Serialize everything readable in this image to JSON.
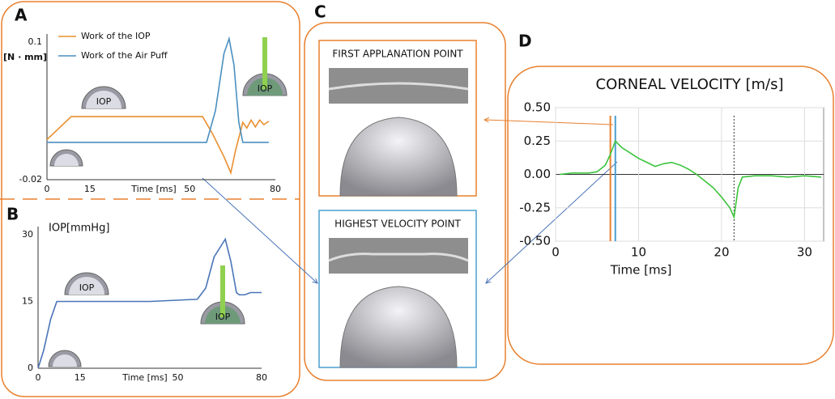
{
  "chart_data": [
    {
      "type": "line",
      "label": "A",
      "ylabel": "[N · mm]",
      "xlabel": "Time [ms]",
      "icon_label": "IOP",
      "xlim": [
        0,
        80
      ],
      "ylim": [
        -0.02,
        0.1
      ],
      "xticks": [
        0,
        15,
        50,
        80
      ],
      "yticks": [
        -0.02,
        0.1
      ],
      "series": [
        {
          "name": "Work of the IOP",
          "color": "#e8902e",
          "x": [
            0,
            8.5,
            54.5,
            58,
            62,
            64.4,
            66,
            68.6,
            70,
            71.5,
            73,
            74.5,
            76,
            77.7
          ],
          "values": [
            0.015,
            0.035,
            0.035,
            0.02,
            0.0,
            -0.014,
            0.005,
            0.03,
            0.025,
            0.032,
            0.026,
            0.032,
            0.028,
            0.031
          ]
        },
        {
          "name": "Work of the Air Puff",
          "color": "#4a8fc0",
          "x": [
            0,
            55.9,
            59,
            62,
            63.8,
            65.5,
            67.2,
            68.6,
            77.7
          ],
          "values": [
            0.0125,
            0.0125,
            0.04,
            0.09,
            0.103,
            0.08,
            0.03,
            0.0125,
            0.0125
          ]
        }
      ]
    },
    {
      "type": "line",
      "label": "B",
      "ylabel": "IOP[mmHg]",
      "xlabel": "Time [ms]",
      "icon_label": "IOP",
      "xlim": [
        0,
        80
      ],
      "ylim": [
        0,
        30
      ],
      "xticks": [
        0,
        15,
        50,
        80
      ],
      "yticks": [
        0,
        15,
        30
      ],
      "series": [
        {
          "name": null,
          "color": "#4a74b8",
          "x": [
            0,
            2,
            4.5,
            6.7,
            10,
            20,
            40,
            57,
            60,
            63,
            66,
            67,
            69,
            71,
            72,
            74,
            76,
            80
          ],
          "values": [
            0,
            4,
            11,
            15,
            15,
            15,
            15,
            15.5,
            18,
            25,
            28,
            29,
            24,
            17,
            16.5,
            16.5,
            17,
            17
          ]
        }
      ]
    },
    {
      "type": "line",
      "label": "D",
      "title": "CORNEAL VELOCITY [m/s]",
      "xlabel": "Time [ms]",
      "xlim": [
        0,
        32.3
      ],
      "ylim": [
        -0.5,
        0.5
      ],
      "xticks": [
        0,
        10,
        20,
        30
      ],
      "yticks": [
        {
          "value": -0.5,
          "label": "-0.50"
        },
        {
          "value": -0.25,
          "label": "-0.25"
        },
        {
          "value": 0,
          "label": "0.00"
        },
        {
          "value": 0.25,
          "label": "0.25"
        },
        {
          "value": 0.5,
          "label": "0.50"
        }
      ],
      "grid": true,
      "vlines": [
        {
          "value": 6.6,
          "color": "#e8802e"
        },
        {
          "value": 7.2,
          "color": "#4a9fd0"
        },
        {
          "value": 21.5,
          "color": "#333",
          "dotted": true
        }
      ],
      "series": [
        {
          "name": null,
          "color": "#3cc43c",
          "x": [
            0.5,
            2,
            4,
            5,
            6,
            6.6,
            7.2,
            8,
            9,
            10,
            11,
            12,
            13,
            14,
            15,
            16,
            17,
            18,
            19,
            20,
            21,
            21.5,
            22,
            22.5,
            24,
            26,
            28,
            30,
            32
          ],
          "values": [
            0,
            0.01,
            0.01,
            0.02,
            0.07,
            0.15,
            0.25,
            0.2,
            0.16,
            0.12,
            0.09,
            0.06,
            0.08,
            0.09,
            0.07,
            0.04,
            0.0,
            -0.05,
            -0.1,
            -0.17,
            -0.25,
            -0.32,
            -0.1,
            -0.02,
            -0.01,
            -0.01,
            -0.02,
            -0.01,
            -0.02
          ]
        }
      ]
    }
  ],
  "panel_c": {
    "label": "C",
    "captions": [
      "FIRST APPLANATION POINT",
      "HIGHEST VELOCITY POINT"
    ]
  }
}
